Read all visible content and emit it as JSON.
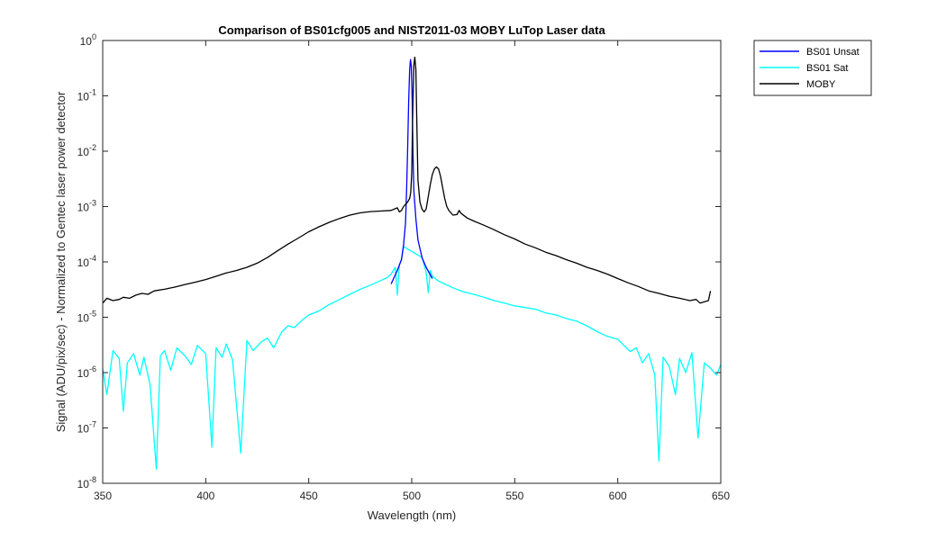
{
  "chart_data": {
    "type": "line",
    "title": "Comparison of BS01cfg005 and NIST2011-03 MOBY LuTop Laser data",
    "xlabel": "Wavelength (nm)",
    "ylabel": "Signal (ADU/pix/sec) - Normalized to Gentec laser power detector",
    "xlim": [
      350,
      650
    ],
    "ylim": [
      1e-08,
      1
    ],
    "yscale": "log",
    "xticks": [
      350,
      400,
      450,
      500,
      550,
      600,
      650
    ],
    "xtick_labels": [
      "350",
      "400",
      "450",
      "500",
      "550",
      "600",
      "650"
    ],
    "yticks_exp": [
      -8,
      -7,
      -6,
      -5,
      -4,
      -3,
      -2,
      -1,
      0
    ],
    "ytick_base": "10",
    "legend_position": "outside-right",
    "series": [
      {
        "name": "BS01 Unsat",
        "color": "#0000ff",
        "points": [
          [
            490,
            4e-05
          ],
          [
            493,
            7e-05
          ],
          [
            495,
            0.00011
          ],
          [
            496,
            0.0002
          ],
          [
            497,
            0.0005
          ],
          [
            497.5,
            0.002
          ],
          [
            498,
            0.01
          ],
          [
            498.5,
            0.08
          ],
          [
            499,
            0.3
          ],
          [
            499.4,
            0.45
          ],
          [
            499.8,
            0.35
          ],
          [
            500.2,
            0.08
          ],
          [
            500.6,
            0.01
          ],
          [
            501,
            0.002
          ],
          [
            502,
            0.0006
          ],
          [
            503,
            0.00025
          ],
          [
            505,
            0.00012
          ],
          [
            507,
            8e-05
          ],
          [
            510,
            5e-05
          ]
        ]
      },
      {
        "name": "BS01 Sat",
        "color": "#00ffff",
        "points": [
          [
            350,
            1.2e-06
          ],
          [
            352,
            4e-07
          ],
          [
            355,
            2.5e-06
          ],
          [
            358,
            1.8e-06
          ],
          [
            360,
            2e-07
          ],
          [
            362,
            1.5e-06
          ],
          [
            365,
            2.2e-06
          ],
          [
            368,
            9e-07
          ],
          [
            370,
            1.9e-06
          ],
          [
            373,
            6e-07
          ],
          [
            376,
            1.8e-08
          ],
          [
            378,
            2e-06
          ],
          [
            380,
            2.5e-06
          ],
          [
            383,
            1.1e-06
          ],
          [
            386,
            2.8e-06
          ],
          [
            390,
            2e-06
          ],
          [
            393,
            1.4e-06
          ],
          [
            396,
            3.1e-06
          ],
          [
            400,
            2.2e-06
          ],
          [
            403,
            4.5e-08
          ],
          [
            405,
            2.8e-06
          ],
          [
            408,
            1.9e-06
          ],
          [
            410,
            3.3e-06
          ],
          [
            413,
            1.7e-06
          ],
          [
            417,
            3.5e-08
          ],
          [
            420,
            3.8e-06
          ],
          [
            423,
            2.5e-06
          ],
          [
            427,
            3.6e-06
          ],
          [
            430,
            4.2e-06
          ],
          [
            433,
            2.8e-06
          ],
          [
            437,
            5.5e-06
          ],
          [
            440,
            7e-06
          ],
          [
            443,
            6.5e-06
          ],
          [
            447,
            9e-06
          ],
          [
            450,
            1.1e-05
          ],
          [
            455,
            1.3e-05
          ],
          [
            460,
            1.7e-05
          ],
          [
            465,
            2.1e-05
          ],
          [
            470,
            2.6e-05
          ],
          [
            475,
            3.2e-05
          ],
          [
            480,
            3.8e-05
          ],
          [
            485,
            4.6e-05
          ],
          [
            488,
            5.2e-05
          ],
          [
            490,
            6e-05
          ],
          [
            492,
            8e-05
          ],
          [
            493,
            2.5e-05
          ],
          [
            494,
            9e-05
          ],
          [
            495,
            0.00011
          ],
          [
            496,
            0.00019
          ],
          [
            505,
            0.00012
          ],
          [
            507,
            6.5e-05
          ],
          [
            508,
            2.8e-05
          ],
          [
            509,
            7e-05
          ],
          [
            510,
            5.5e-05
          ],
          [
            513,
            4.5e-05
          ],
          [
            516,
            4e-05
          ],
          [
            520,
            3.4e-05
          ],
          [
            525,
            2.9e-05
          ],
          [
            530,
            2.6e-05
          ],
          [
            535,
            2.3e-05
          ],
          [
            540,
            2e-05
          ],
          [
            545,
            1.8e-05
          ],
          [
            550,
            1.6e-05
          ],
          [
            555,
            1.5e-05
          ],
          [
            560,
            1.4e-05
          ],
          [
            565,
            1.2e-05
          ],
          [
            570,
            1.1e-05
          ],
          [
            575,
            9.5e-06
          ],
          [
            580,
            8.5e-06
          ],
          [
            585,
            7e-06
          ],
          [
            590,
            5.5e-06
          ],
          [
            595,
            4.5e-06
          ],
          [
            600,
            4e-06
          ],
          [
            603,
            3.1e-06
          ],
          [
            606,
            2.4e-06
          ],
          [
            609,
            2.8e-06
          ],
          [
            612,
            1.5e-06
          ],
          [
            615,
            2.2e-06
          ],
          [
            618,
            9e-07
          ],
          [
            620,
            2.5e-08
          ],
          [
            622,
            1.9e-06
          ],
          [
            625,
            1.3e-06
          ],
          [
            628,
            4e-07
          ],
          [
            630,
            1.8e-06
          ],
          [
            633,
            1e-06
          ],
          [
            636,
            2.3e-06
          ],
          [
            639,
            6.5e-08
          ],
          [
            642,
            1.5e-06
          ],
          [
            645,
            1.2e-06
          ],
          [
            648,
            9e-07
          ],
          [
            650,
            1.4e-06
          ]
        ]
      },
      {
        "name": "MOBY",
        "color": "#000000",
        "points": [
          [
            350,
            1.8e-05
          ],
          [
            352,
            2.2e-05
          ],
          [
            355,
            2e-05
          ],
          [
            358,
            2.1e-05
          ],
          [
            360,
            2.3e-05
          ],
          [
            363,
            2.2e-05
          ],
          [
            366,
            2.5e-05
          ],
          [
            369,
            2.7e-05
          ],
          [
            372,
            2.6e-05
          ],
          [
            375,
            3e-05
          ],
          [
            380,
            3.2e-05
          ],
          [
            385,
            3.5e-05
          ],
          [
            390,
            3.9e-05
          ],
          [
            395,
            4.3e-05
          ],
          [
            400,
            4.8e-05
          ],
          [
            405,
            5.5e-05
          ],
          [
            410,
            6.3e-05
          ],
          [
            415,
            7e-05
          ],
          [
            420,
            8e-05
          ],
          [
            425,
            9.5e-05
          ],
          [
            430,
            0.00012
          ],
          [
            435,
            0.00016
          ],
          [
            440,
            0.00021
          ],
          [
            445,
            0.00027
          ],
          [
            450,
            0.00035
          ],
          [
            455,
            0.00043
          ],
          [
            460,
            0.00052
          ],
          [
            465,
            0.00061
          ],
          [
            470,
            0.0007
          ],
          [
            475,
            0.00077
          ],
          [
            480,
            0.00081
          ],
          [
            485,
            0.00083
          ],
          [
            490,
            0.00085
          ],
          [
            493,
            0.00095
          ],
          [
            494,
            0.0008
          ],
          [
            495,
            0.00085
          ],
          [
            496,
            0.001
          ],
          [
            497,
            0.0011
          ],
          [
            498,
            0.0012
          ],
          [
            499,
            0.0014
          ],
          [
            499.5,
            0.0018
          ],
          [
            500,
            0.004
          ],
          [
            500.5,
            0.05
          ],
          [
            501,
            0.35
          ],
          [
            501.5,
            0.5
          ],
          [
            502,
            0.3
          ],
          [
            502.5,
            0.03
          ],
          [
            503,
            0.003
          ],
          [
            504,
            0.0012
          ],
          [
            505,
            0.0009
          ],
          [
            506,
            0.0008
          ],
          [
            507,
            0.0009
          ],
          [
            508,
            0.0015
          ],
          [
            509,
            0.0025
          ],
          [
            510,
            0.0038
          ],
          [
            511,
            0.0048
          ],
          [
            512,
            0.0052
          ],
          [
            513,
            0.0048
          ],
          [
            514,
            0.0035
          ],
          [
            515,
            0.0022
          ],
          [
            516,
            0.0014
          ],
          [
            517,
            0.001
          ],
          [
            518,
            0.00085
          ],
          [
            520,
            0.0007
          ],
          [
            522,
            0.00072
          ],
          [
            523,
            0.00085
          ],
          [
            524,
            0.00075
          ],
          [
            527,
            0.00062
          ],
          [
            530,
            0.00055
          ],
          [
            535,
            0.00046
          ],
          [
            540,
            0.00038
          ],
          [
            545,
            0.00031
          ],
          [
            550,
            0.00026
          ],
          [
            555,
            0.00021
          ],
          [
            560,
            0.00018
          ],
          [
            565,
            0.00015
          ],
          [
            570,
            0.00013
          ],
          [
            575,
            0.00011
          ],
          [
            580,
            9.5e-05
          ],
          [
            585,
            8e-05
          ],
          [
            590,
            7e-05
          ],
          [
            595,
            6e-05
          ],
          [
            600,
            5e-05
          ],
          [
            605,
            4.2e-05
          ],
          [
            610,
            3.6e-05
          ],
          [
            615,
            3e-05
          ],
          [
            620,
            2.7e-05
          ],
          [
            625,
            2.4e-05
          ],
          [
            630,
            2.2e-05
          ],
          [
            635,
            2e-05
          ],
          [
            638,
            2.1e-05
          ],
          [
            640,
            1.8e-05
          ],
          [
            642,
            1.9e-05
          ],
          [
            644,
            2e-05
          ],
          [
            645,
            3e-05
          ]
        ]
      }
    ]
  }
}
